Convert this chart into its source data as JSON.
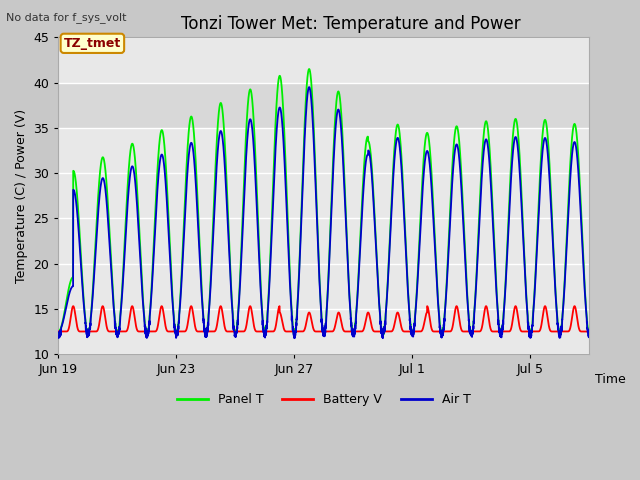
{
  "title": "Tonzi Tower Met: Temperature and Power",
  "ylabel": "Temperature (C) / Power (V)",
  "xlabel": "Time",
  "top_left_note": "No data for f_sys_volt",
  "tag_label": "TZ_tmet",
  "ylim": [
    10,
    45
  ],
  "yticks": [
    10,
    15,
    20,
    25,
    30,
    35,
    40,
    45
  ],
  "x_tick_labels": [
    "Jun 19",
    "Jun 23",
    "Jun 27",
    "Jul 1",
    "Jul 5"
  ],
  "x_tick_positions": [
    0,
    4,
    8,
    12,
    16
  ],
  "fig_bg": "#c8c8c8",
  "plot_bg": "#e8e8e8",
  "band_bg": "#d8d8d8",
  "band_ymin": 35,
  "band_ymax": 40,
  "grid_color": "#ffffff",
  "line_green": "#00ee00",
  "line_red": "#ff0000",
  "line_blue": "#0000cc",
  "legend_items": [
    "Panel T",
    "Battery V",
    "Air T"
  ],
  "legend_colors": [
    "#00ee00",
    "#ff0000",
    "#0000cc"
  ],
  "title_fontsize": 12,
  "label_fontsize": 9,
  "tick_fontsize": 9,
  "n_days": 18,
  "base_temp": 12.5
}
